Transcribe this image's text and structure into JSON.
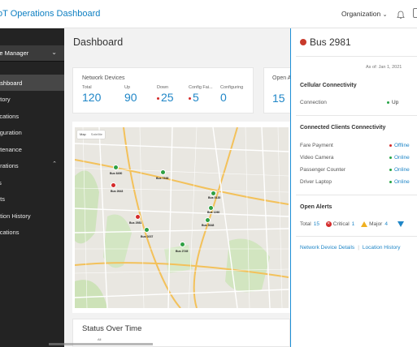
{
  "header": {
    "title": "oT Operations Dashboard",
    "organization": "Organization"
  },
  "sidebar": {
    "selector": "ice Manager",
    "items": [
      {
        "label": "ashboard"
      },
      {
        "label": "ntory"
      },
      {
        "label": "lications"
      },
      {
        "label": "figuration"
      },
      {
        "label": "ntenance"
      },
      {
        "label": "erations"
      },
      {
        "label": "ts"
      },
      {
        "label": "nts"
      },
      {
        "label": "ation History"
      },
      {
        "label": "fications"
      }
    ]
  },
  "main": {
    "page_title": "Dashboard",
    "network_devices": {
      "title": "Network Devices",
      "metrics": [
        {
          "label": "Total",
          "value": "120"
        },
        {
          "label": "Up",
          "value": "90"
        },
        {
          "label": "Down",
          "value": "25"
        },
        {
          "label": "Config Fai...",
          "value": "5"
        },
        {
          "label": "Configuring",
          "value": "0"
        }
      ]
    },
    "open_alerts_card": {
      "title": "Open A",
      "value": "15"
    },
    "map": {
      "tabs": [
        "Map",
        "Satellite"
      ],
      "buses": [
        {
          "label": "Bus 6490",
          "color": "#2ea043"
        },
        {
          "label": "Bus 7338",
          "color": "#2ea043"
        },
        {
          "label": "Bus 2643",
          "color": "#d42b2b"
        },
        {
          "label": "Bus 0120",
          "color": "#2ea043"
        },
        {
          "label": "Bus 1260",
          "color": "#2ea043"
        },
        {
          "label": "Bus 2981",
          "color": "#d42b2b"
        },
        {
          "label": "Bus 9348",
          "color": "#2ea043"
        },
        {
          "label": "Bus 0237",
          "color": "#2ea043"
        },
        {
          "label": "Bus 2745",
          "color": "#2ea043"
        }
      ]
    },
    "status_over_time": {
      "title": "Status Over Time",
      "subtitle": "All"
    }
  },
  "panel": {
    "title": "Bus 2981",
    "as_of": "As of: Jan 1, 2021",
    "cellular": {
      "title": "Cellular Connectivity",
      "label": "Connection",
      "value": "Up"
    },
    "clients": {
      "title": "Connected Clients Connectivity",
      "rows": [
        {
          "label": "Fare Payment",
          "value": "Offline",
          "color": "#d42b2b"
        },
        {
          "label": "Video Camera",
          "value": "Online",
          "color": "#26a346"
        },
        {
          "label": "Passenger Counter",
          "value": "Online",
          "color": "#26a346"
        },
        {
          "label": "Driver Laptop",
          "value": "Online",
          "color": "#26a346"
        }
      ]
    },
    "alerts": {
      "title": "Open Alerts",
      "total_label": "Total",
      "total": "15",
      "critical_label": "Critical",
      "critical": "1",
      "major_label": "Major",
      "major": "4"
    },
    "links": {
      "details": "Network Device Details",
      "history": "Location History"
    }
  }
}
